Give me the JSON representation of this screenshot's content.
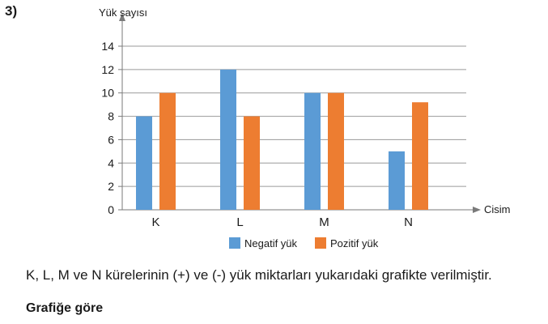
{
  "question_number": "3)",
  "description": "K, L, M ve N kürelerinin (+) ve (-) yük miktarları yukarıdaki grafikte verilmiştir.",
  "subheading": "Grafiğe göre",
  "colors": {
    "negatif": "#5b9bd5",
    "pozitif": "#ed7d31",
    "grid": "#9a9a9a",
    "axis": "#7a7a7a"
  },
  "chart_data": {
    "type": "bar",
    "title": "",
    "xlabel": "Cisim",
    "ylabel": "Yük sayısı",
    "categories": [
      "K",
      "L",
      "M",
      "N"
    ],
    "series": [
      {
        "name": "Negatif yük",
        "values": [
          8,
          12,
          10,
          5
        ]
      },
      {
        "name": "Pozitif yük",
        "values": [
          10,
          8,
          10,
          9.2
        ]
      }
    ],
    "ylim": [
      0,
      14
    ],
    "yticks": [
      0,
      2,
      4,
      6,
      8,
      10,
      12,
      14
    ],
    "grid": true,
    "legend_position": "bottom"
  }
}
